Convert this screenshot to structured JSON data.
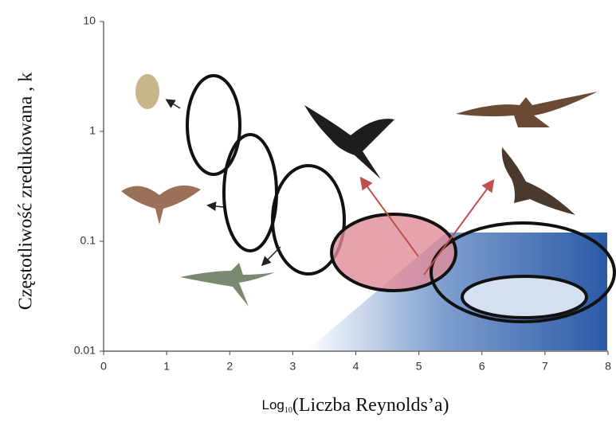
{
  "chart_data": {
    "type": "region",
    "ylabel": "Częstotliwość zredukowana  , k",
    "xlabel": {
      "base": "Log",
      "subscript": "10",
      "text": "(Liczba Reynolds’a)"
    },
    "xlim": [
      0,
      8
    ],
    "xticks": [
      0,
      1,
      2,
      3,
      4,
      5,
      6,
      7,
      8
    ],
    "ylim": [
      0.01,
      10
    ],
    "yticks": [
      0.01,
      0.1,
      1,
      10
    ],
    "ylog": true
  }
}
